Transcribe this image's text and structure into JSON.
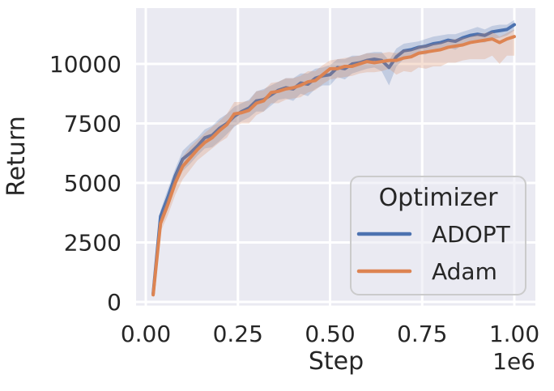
{
  "figure": {
    "background": "#ffffff",
    "axes_background": "#eaeaf2",
    "grid_color": "#ffffff",
    "text_color": "#262626"
  },
  "chart_data": {
    "type": "line",
    "title": "",
    "xlabel": "Step",
    "ylabel": "Return",
    "x_offset_label": "1e6",
    "grid": true,
    "xlim": [
      -0.0264,
      1.0571
    ],
    "ylim": [
      -153,
      12347
    ],
    "x_ticks": [
      0.0,
      0.25,
      0.5,
      0.75,
      1.0
    ],
    "x_tick_labels": [
      "0.00",
      "0.25",
      "0.50",
      "0.75",
      "1.00"
    ],
    "y_ticks": [
      0,
      2500,
      5000,
      7500,
      10000
    ],
    "y_tick_labels": [
      "0",
      "2500",
      "5000",
      "7500",
      "10000"
    ],
    "legend": {
      "title": "Optimizer",
      "position": "lower right",
      "entries": [
        "ADOPT",
        "Adam"
      ]
    },
    "x": [
      0.02,
      0.04,
      0.06,
      0.08,
      0.1,
      0.12,
      0.14,
      0.16,
      0.18,
      0.2,
      0.22,
      0.24,
      0.26,
      0.28,
      0.3,
      0.32,
      0.34,
      0.36,
      0.38,
      0.4,
      0.42,
      0.44,
      0.46,
      0.48,
      0.5,
      0.52,
      0.54,
      0.56,
      0.58,
      0.6,
      0.62,
      0.64,
      0.66,
      0.68,
      0.7,
      0.72,
      0.74,
      0.76,
      0.78,
      0.8,
      0.82,
      0.84,
      0.86,
      0.88,
      0.9,
      0.92,
      0.94,
      0.96,
      0.98,
      1.0
    ],
    "series": [
      {
        "name": "ADOPT",
        "color": "#4c72b0",
        "values": [
          350,
          3600,
          4400,
          5300,
          6000,
          6250,
          6550,
          6900,
          7000,
          7300,
          7500,
          7800,
          8000,
          8150,
          8450,
          8500,
          8700,
          8900,
          9000,
          8950,
          9200,
          9150,
          9400,
          9500,
          9550,
          9850,
          9800,
          10000,
          10050,
          10150,
          10200,
          10150,
          9850,
          10300,
          10550,
          10600,
          10700,
          10750,
          10850,
          10900,
          11000,
          10950,
          11100,
          11200,
          11250,
          11200,
          11350,
          11400,
          11450,
          11650
        ],
        "band_below": [
          150,
          350,
          500,
          450,
          500,
          450,
          400,
          450,
          500,
          550,
          450,
          450,
          400,
          400,
          450,
          500,
          450,
          400,
          450,
          500,
          450,
          500,
          450,
          400,
          450,
          400,
          450,
          400,
          350,
          350,
          350,
          450,
          750,
          400,
          350,
          350,
          300,
          350,
          300,
          300,
          300,
          350,
          300,
          300,
          350,
          300,
          300,
          300,
          250,
          250
        ],
        "band_above": [
          150,
          250,
          350,
          300,
          350,
          400,
          350,
          350,
          400,
          400,
          400,
          400,
          350,
          350,
          400,
          450,
          400,
          350,
          400,
          450,
          400,
          450,
          400,
          350,
          400,
          350,
          400,
          350,
          300,
          300,
          300,
          350,
          300,
          350,
          300,
          300,
          250,
          300,
          300,
          300,
          250,
          300,
          250,
          250,
          300,
          250,
          250,
          250,
          200,
          200
        ]
      },
      {
        "name": "Adam",
        "color": "#dd8452",
        "values": [
          300,
          3300,
          4100,
          5000,
          5700,
          6050,
          6400,
          6700,
          6900,
          7200,
          7450,
          7900,
          7950,
          8050,
          8350,
          8450,
          8800,
          8850,
          8950,
          9000,
          9100,
          9250,
          9300,
          9550,
          9800,
          9800,
          9900,
          9900,
          10000,
          10100,
          10050,
          10100,
          10150,
          10150,
          10250,
          10300,
          10450,
          10500,
          10550,
          10600,
          10700,
          10750,
          10800,
          10900,
          10950,
          11000,
          11050,
          10900,
          11050,
          11150
        ],
        "band_below": [
          150,
          350,
          450,
          500,
          550,
          500,
          450,
          500,
          450,
          500,
          550,
          500,
          450,
          550,
          500,
          450,
          450,
          500,
          450,
          450,
          500,
          450,
          400,
          400,
          450,
          400,
          450,
          400,
          400,
          450,
          400,
          400,
          350,
          600,
          550,
          650,
          600,
          700,
          650,
          700,
          650,
          700,
          650,
          700,
          750,
          800,
          700,
          900,
          700,
          800
        ],
        "band_above": [
          150,
          300,
          350,
          400,
          400,
          450,
          400,
          400,
          450,
          400,
          450,
          500,
          450,
          400,
          500,
          450,
          400,
          400,
          450,
          400,
          400,
          450,
          400,
          400,
          350,
          400,
          350,
          400,
          350,
          350,
          400,
          350,
          350,
          300,
          350,
          300,
          300,
          300,
          300,
          300,
          300,
          300,
          300,
          250,
          300,
          300,
          300,
          250,
          250,
          300
        ]
      }
    ]
  }
}
